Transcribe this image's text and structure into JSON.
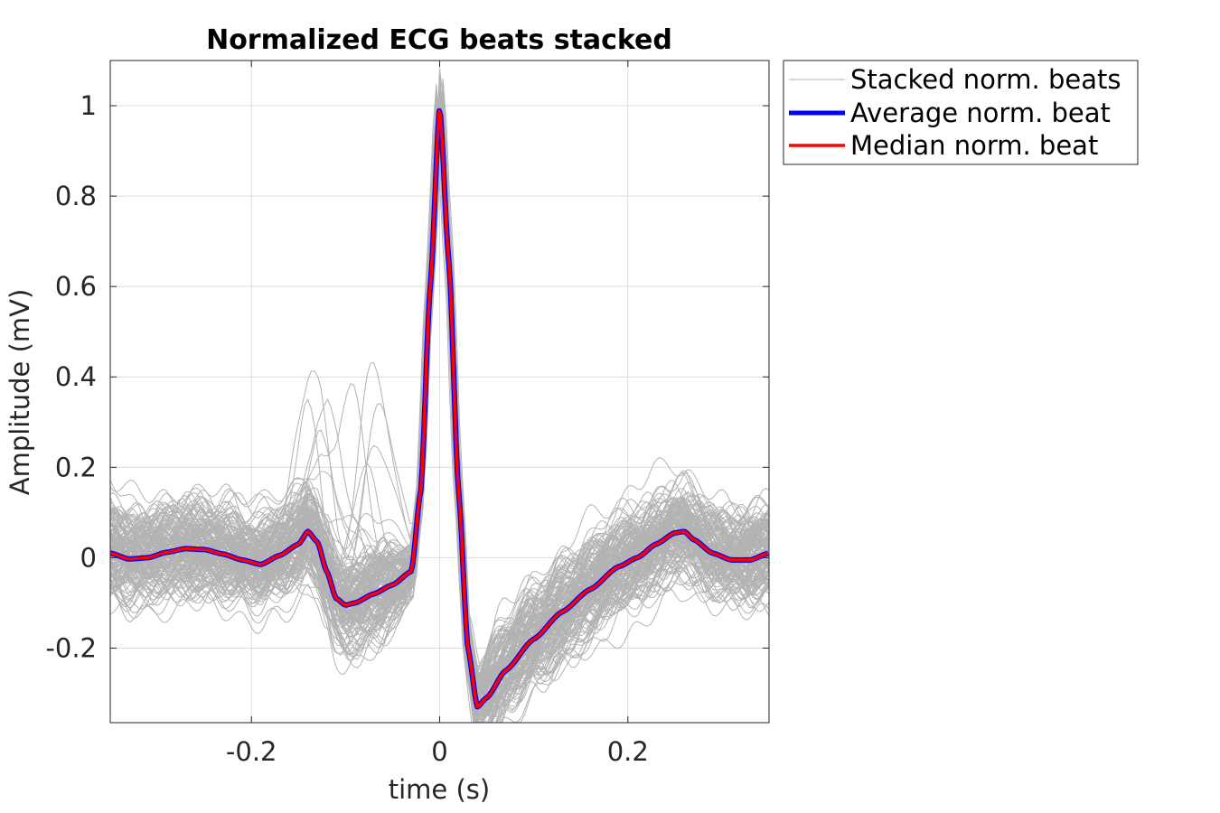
{
  "chart_data": {
    "type": "line",
    "title": "Normalized ECG beats stacked",
    "xlabel": "time (s)",
    "ylabel": "Amplitude (mV)",
    "xlim": [
      -0.35,
      0.35
    ],
    "ylim": [
      -0.365,
      1.1
    ],
    "xticks": [
      -0.2,
      0,
      0.2
    ],
    "xtick_labels": [
      "-0.2",
      "0",
      "0.2"
    ],
    "yticks": [
      -0.2,
      0,
      0.2,
      0.4,
      0.6,
      0.8,
      1
    ],
    "ytick_labels": [
      "-0.2",
      "0",
      "0.2",
      "0.4",
      "0.6",
      "0.8",
      "1"
    ],
    "grid": true,
    "legend_position": "outside-top-right",
    "colors": {
      "stacked": "#b3b3b3",
      "average": "#0000ff",
      "median": "#ff0000",
      "grid": "#dcdcdc",
      "axis": "#262626"
    },
    "stacked_beat_count": 160,
    "series": [
      {
        "name": "Stacked norm. beats",
        "style": "thin-gray-multiple"
      },
      {
        "name": "Average norm. beat",
        "x": [
          -0.35,
          -0.33,
          -0.31,
          -0.29,
          -0.27,
          -0.25,
          -0.23,
          -0.21,
          -0.19,
          -0.17,
          -0.15,
          -0.14,
          -0.13,
          -0.12,
          -0.11,
          -0.1,
          -0.09,
          -0.07,
          -0.05,
          -0.03,
          -0.02,
          -0.01,
          0,
          0.01,
          0.02,
          0.03,
          0.04,
          0.05,
          0.07,
          0.1,
          0.13,
          0.16,
          0.19,
          0.21,
          0.23,
          0.25,
          0.26,
          0.27,
          0.29,
          0.31,
          0.33,
          0.35
        ],
        "y": [
          0.01,
          -0.003,
          0.0,
          0.012,
          0.02,
          0.018,
          0.008,
          -0.005,
          -0.015,
          0.005,
          0.03,
          0.058,
          0.035,
          -0.03,
          -0.09,
          -0.105,
          -0.1,
          -0.08,
          -0.06,
          -0.03,
          0.15,
          0.6,
          1.0,
          0.65,
          0.15,
          -0.2,
          -0.33,
          -0.31,
          -0.25,
          -0.18,
          -0.12,
          -0.07,
          -0.02,
          0.0,
          0.03,
          0.055,
          0.058,
          0.04,
          0.01,
          -0.005,
          -0.005,
          0.01
        ]
      },
      {
        "name": "Median norm. beat",
        "x": [
          -0.35,
          -0.33,
          -0.31,
          -0.29,
          -0.27,
          -0.25,
          -0.23,
          -0.21,
          -0.19,
          -0.17,
          -0.15,
          -0.14,
          -0.13,
          -0.12,
          -0.11,
          -0.1,
          -0.09,
          -0.07,
          -0.05,
          -0.03,
          -0.02,
          -0.01,
          0,
          0.01,
          0.02,
          0.03,
          0.04,
          0.05,
          0.07,
          0.1,
          0.13,
          0.16,
          0.19,
          0.21,
          0.23,
          0.25,
          0.26,
          0.27,
          0.29,
          0.31,
          0.33,
          0.35
        ],
        "y": [
          0.01,
          -0.003,
          0.0,
          0.012,
          0.02,
          0.018,
          0.008,
          -0.005,
          -0.015,
          0.005,
          0.03,
          0.058,
          0.035,
          -0.03,
          -0.09,
          -0.105,
          -0.1,
          -0.08,
          -0.06,
          -0.03,
          0.15,
          0.6,
          1.0,
          0.65,
          0.15,
          -0.2,
          -0.33,
          -0.31,
          -0.25,
          -0.18,
          -0.12,
          -0.07,
          -0.02,
          0.0,
          0.03,
          0.055,
          0.058,
          0.04,
          0.01,
          -0.005,
          -0.005,
          0.01
        ]
      }
    ]
  }
}
